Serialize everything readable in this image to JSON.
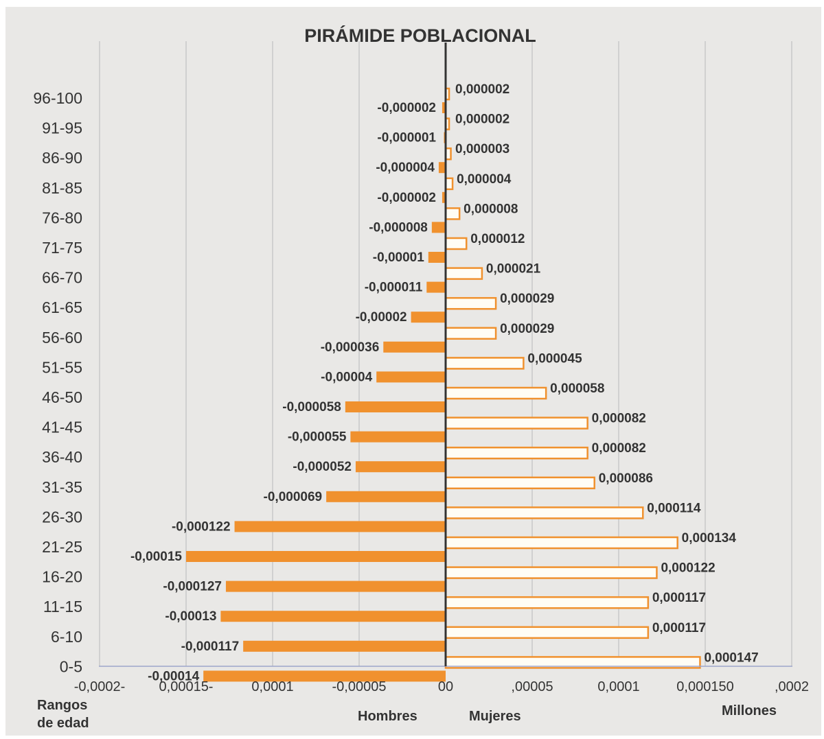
{
  "chart_data": {
    "type": "bar",
    "orientation": "horizontal",
    "title": "PIRÁMIDE POBLACIONAL",
    "categories": [
      "0-5",
      "6-10",
      "11-15",
      "16-20",
      "21-25",
      "26-30",
      "31-35",
      "36-40",
      "41-45",
      "46-50",
      "51-55",
      "56-60",
      "61-65",
      "66-70",
      "71-75",
      "76-80",
      "81-85",
      "86-90",
      "91-95",
      "96-100"
    ],
    "series": [
      {
        "name": "Hombres",
        "color": "#f0912e",
        "values": [
          -0.00014,
          -0.000117,
          -0.00013,
          -0.000127,
          -0.00015,
          -0.000122,
          -6.9e-05,
          -5.2e-05,
          -5.5e-05,
          -5.8e-05,
          -4e-05,
          -3.6e-05,
          -2e-05,
          -1.1e-05,
          -1e-05,
          -8e-06,
          -2e-06,
          -4e-06,
          -1e-06,
          -2e-06
        ],
        "value_labels": [
          "-0,00014",
          "-0,000117",
          "-0,00013",
          "-0,000127",
          "-0,00015",
          "-0,000122",
          "-0,000069",
          "-0,000052",
          "-0,000055",
          "-0,000058",
          "-0,00004",
          "-0,000036",
          "-0,00002",
          "-0,000011",
          "-0,00001",
          "-0,000008",
          "-0,000002",
          "-0,000004",
          "-0,000001",
          "-0,000002"
        ]
      },
      {
        "name": "Mujeres",
        "color": "#fffdf5",
        "stroke": "#f0912e",
        "values": [
          0.000147,
          0.000117,
          0.000117,
          0.000122,
          0.000134,
          0.000114,
          8.6e-05,
          8.2e-05,
          8.2e-05,
          5.8e-05,
          4.5e-05,
          2.9e-05,
          2.9e-05,
          2.1e-05,
          1.2e-05,
          8e-06,
          4e-06,
          3e-06,
          2e-06,
          2e-06
        ],
        "value_labels": [
          "0,000147",
          "0,000117",
          "0,000117",
          "0,000122",
          "0,000134",
          "0,000114",
          "0,000086",
          "0,000082",
          "0,000082",
          "0,000058",
          "0,000045",
          "0,000029",
          "0,000029",
          "0,000021",
          "0,000012",
          "0,000008",
          "0,000004",
          "0,000003",
          "0,000002",
          "0,000002"
        ]
      }
    ],
    "x_ticks": [
      -0.0002,
      -0.00015,
      -0.0001,
      -5e-05,
      0,
      5e-05,
      0.0001,
      0.00015,
      0.0002
    ],
    "x_tick_labels": [
      "-0,0002-",
      "0,00015-",
      "0,0001",
      "-0,00005",
      "00",
      ",00005",
      "0,0001",
      "0,000150",
      ",0002"
    ],
    "xlim": [
      -0.0002,
      0.0002
    ],
    "y_axis_label": "Rangos de edad",
    "y_axis_label_lines": [
      "Rangos",
      "de edad"
    ],
    "x_left_label": "Hombres",
    "x_right_label": "Mujeres",
    "x_unit_label": "Millones",
    "grid": "vertical",
    "legend": "none",
    "panel_background": "#e9e8e6",
    "grid_color": "#c8c8c8",
    "axis_color": "#9ea6cc"
  }
}
